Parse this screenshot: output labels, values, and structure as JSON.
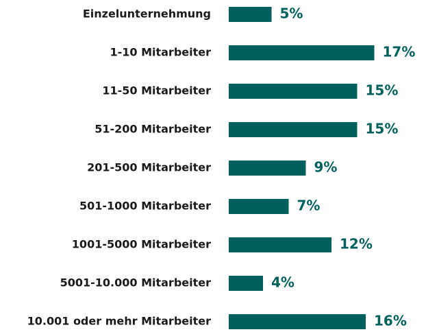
{
  "chart_data": {
    "type": "bar",
    "orientation": "horizontal",
    "color": "#00605b",
    "categories": [
      "Einzelunternehmung",
      "1-10 Mitarbeiter",
      "11-50 Mitarbeiter",
      "51-200 Mitarbeiter",
      "201-500 Mitarbeiter",
      "501-1000 Mitarbeiter",
      "1001-5000 Mitarbeiter",
      "5001-10.000 Mitarbeiter",
      "10.001 oder mehr Mitarbeiter"
    ],
    "values": [
      5,
      17,
      15,
      15,
      9,
      7,
      12,
      4,
      16
    ],
    "value_labels": [
      "5%",
      "17%",
      "15%",
      "15%",
      "9%",
      "7%",
      "12%",
      "4%",
      "16%"
    ]
  }
}
